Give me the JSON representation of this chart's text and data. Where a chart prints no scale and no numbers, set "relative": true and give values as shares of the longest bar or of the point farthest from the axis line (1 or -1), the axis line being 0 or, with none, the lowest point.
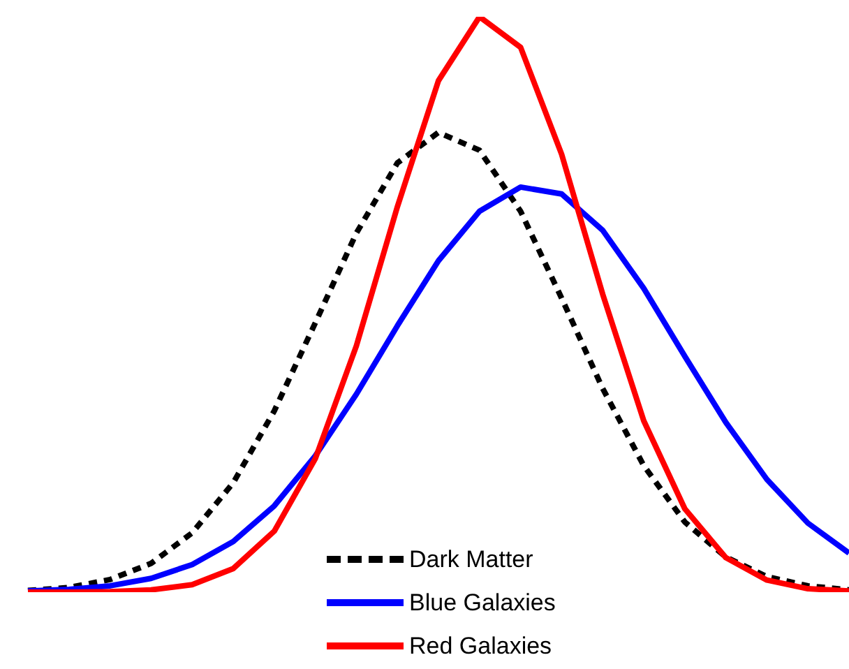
{
  "chart_data": {
    "type": "line",
    "relative": true,
    "legend": "bottom",
    "marker": "none",
    "categories": [
      null,
      null,
      null,
      null,
      null,
      null,
      null,
      null,
      null,
      null,
      null,
      null,
      null,
      null,
      null,
      null,
      null,
      null,
      null,
      null,
      null
    ],
    "series": [
      {
        "name": "Dark Matter",
        "color": "#000000",
        "line_style": "dotted",
        "values": [
          0.003,
          0.008,
          0.022,
          0.05,
          0.103,
          0.19,
          0.315,
          0.468,
          0.624,
          0.746,
          0.799,
          0.768,
          0.662,
          0.511,
          0.354,
          0.22,
          0.122,
          0.061,
          0.027,
          0.011,
          0.004
        ]
      },
      {
        "name": "Blue Galaxies",
        "color": "#0000ff",
        "line_style": "solid",
        "values": [
          0.002,
          0.005,
          0.011,
          0.024,
          0.048,
          0.088,
          0.15,
          0.237,
          0.344,
          0.463,
          0.576,
          0.662,
          0.704,
          0.692,
          0.629,
          0.528,
          0.41,
          0.295,
          0.196,
          0.12,
          0.068
        ]
      },
      {
        "name": "Red Galaxies",
        "color": "#ff0000",
        "line_style": "solid",
        "values": [
          0,
          0,
          0.001,
          0.004,
          0.013,
          0.041,
          0.106,
          0.232,
          0.428,
          0.67,
          0.889,
          1,
          0.947,
          0.761,
          0.518,
          0.298,
          0.145,
          0.06,
          0.021,
          0.006,
          0.002
        ]
      }
    ]
  }
}
